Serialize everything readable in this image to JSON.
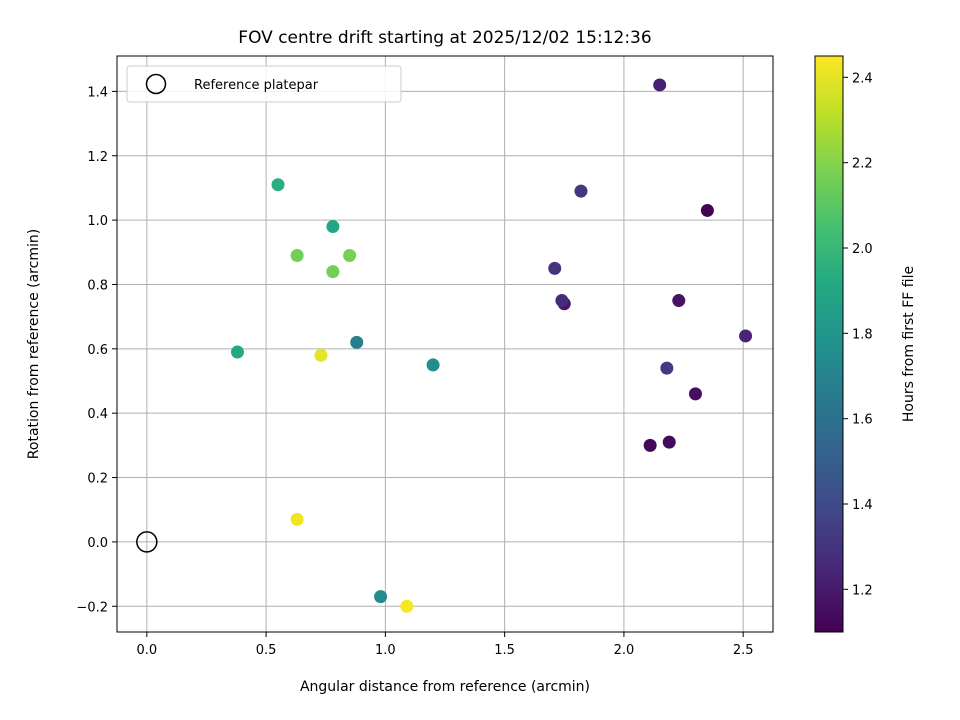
{
  "chart_data": {
    "type": "scatter",
    "title": "FOV centre drift starting at 2025/12/02 15:12:36",
    "xlabel": "Angular distance from reference (arcmin)",
    "ylabel": "Rotation from reference (arcmin)",
    "xlim": [
      -0.125,
      2.625
    ],
    "ylim": [
      -0.28,
      1.51
    ],
    "xticks": [
      0.0,
      0.5,
      1.0,
      1.5,
      2.0,
      2.5
    ],
    "xtick_labels": [
      "0.0",
      "0.5",
      "1.0",
      "1.5",
      "2.0",
      "2.5"
    ],
    "yticks": [
      -0.2,
      0.0,
      0.2,
      0.4,
      0.6,
      0.8,
      1.0,
      1.2,
      1.4
    ],
    "ytick_labels": [
      "−0.2",
      "0.0",
      "0.2",
      "0.4",
      "0.6",
      "0.8",
      "1.0",
      "1.2",
      "1.4"
    ],
    "grid": true,
    "legend": {
      "position": "top-left",
      "label": "Reference platepar"
    },
    "reference_point": {
      "x": 0.0,
      "y": 0.0
    },
    "colorbar": {
      "label": "Hours from first FF file",
      "colormap": "viridis",
      "range": [
        1.1,
        2.45
      ],
      "ticks": [
        1.2,
        1.4,
        1.6,
        1.8,
        2.0,
        2.2,
        2.4
      ],
      "tick_labels": [
        "1.2",
        "1.4",
        "1.6",
        "1.8",
        "2.0",
        "2.2",
        "2.4"
      ]
    },
    "points": [
      {
        "x": 2.35,
        "y": 1.03,
        "hours": 1.11
      },
      {
        "x": 2.11,
        "y": 0.3,
        "hours": 1.13
      },
      {
        "x": 2.19,
        "y": 0.31,
        "hours": 1.14
      },
      {
        "x": 2.3,
        "y": 0.46,
        "hours": 1.15
      },
      {
        "x": 2.23,
        "y": 0.75,
        "hours": 1.17
      },
      {
        "x": 1.75,
        "y": 0.74,
        "hours": 1.19
      },
      {
        "x": 2.15,
        "y": 1.42,
        "hours": 1.22
      },
      {
        "x": 2.51,
        "y": 0.64,
        "hours": 1.24
      },
      {
        "x": 1.74,
        "y": 0.75,
        "hours": 1.27
      },
      {
        "x": 1.71,
        "y": 0.85,
        "hours": 1.3
      },
      {
        "x": 1.82,
        "y": 1.09,
        "hours": 1.31
      },
      {
        "x": 2.18,
        "y": 0.54,
        "hours": 1.33
      },
      {
        "x": 0.88,
        "y": 0.62,
        "hours": 1.68
      },
      {
        "x": 0.98,
        "y": -0.17,
        "hours": 1.74
      },
      {
        "x": 1.2,
        "y": 0.55,
        "hours": 1.75
      },
      {
        "x": 0.78,
        "y": 0.98,
        "hours": 1.9
      },
      {
        "x": 0.38,
        "y": 0.59,
        "hours": 1.91
      },
      {
        "x": 0.55,
        "y": 1.11,
        "hours": 1.94
      },
      {
        "x": 0.63,
        "y": 0.89,
        "hours": 2.16
      },
      {
        "x": 0.78,
        "y": 0.84,
        "hours": 2.16
      },
      {
        "x": 0.85,
        "y": 0.89,
        "hours": 2.17
      },
      {
        "x": 0.73,
        "y": 0.58,
        "hours": 2.4
      },
      {
        "x": 0.63,
        "y": 0.07,
        "hours": 2.42
      },
      {
        "x": 1.09,
        "y": -0.2,
        "hours": 2.44
      }
    ]
  }
}
